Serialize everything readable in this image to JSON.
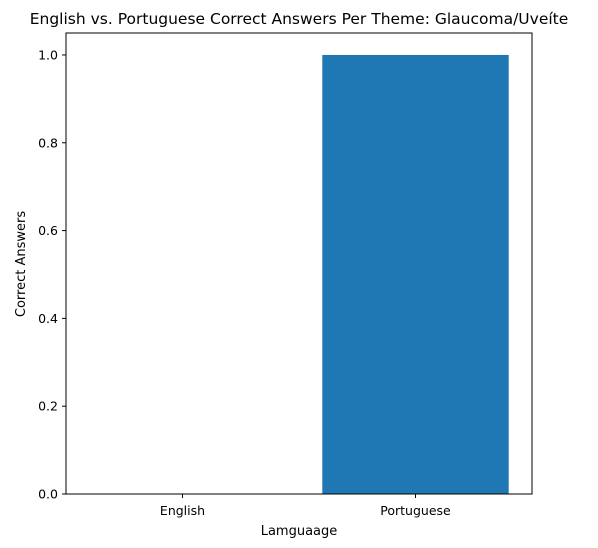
{
  "chart_data": {
    "type": "bar",
    "title": "English vs. Portuguese Correct Answers Per Theme: Glaucoma/Uveíte",
    "xlabel": "Lamguaage",
    "ylabel": "Correct Answers",
    "categories": [
      "English",
      "Portuguese"
    ],
    "values": [
      0,
      1
    ],
    "ylim": [
      0,
      1.05
    ],
    "yticks": [
      "0.0",
      "0.2",
      "0.4",
      "0.6",
      "0.8",
      "1.0"
    ],
    "bar_color": "#1f77b4",
    "grid": false,
    "legend": "none"
  }
}
